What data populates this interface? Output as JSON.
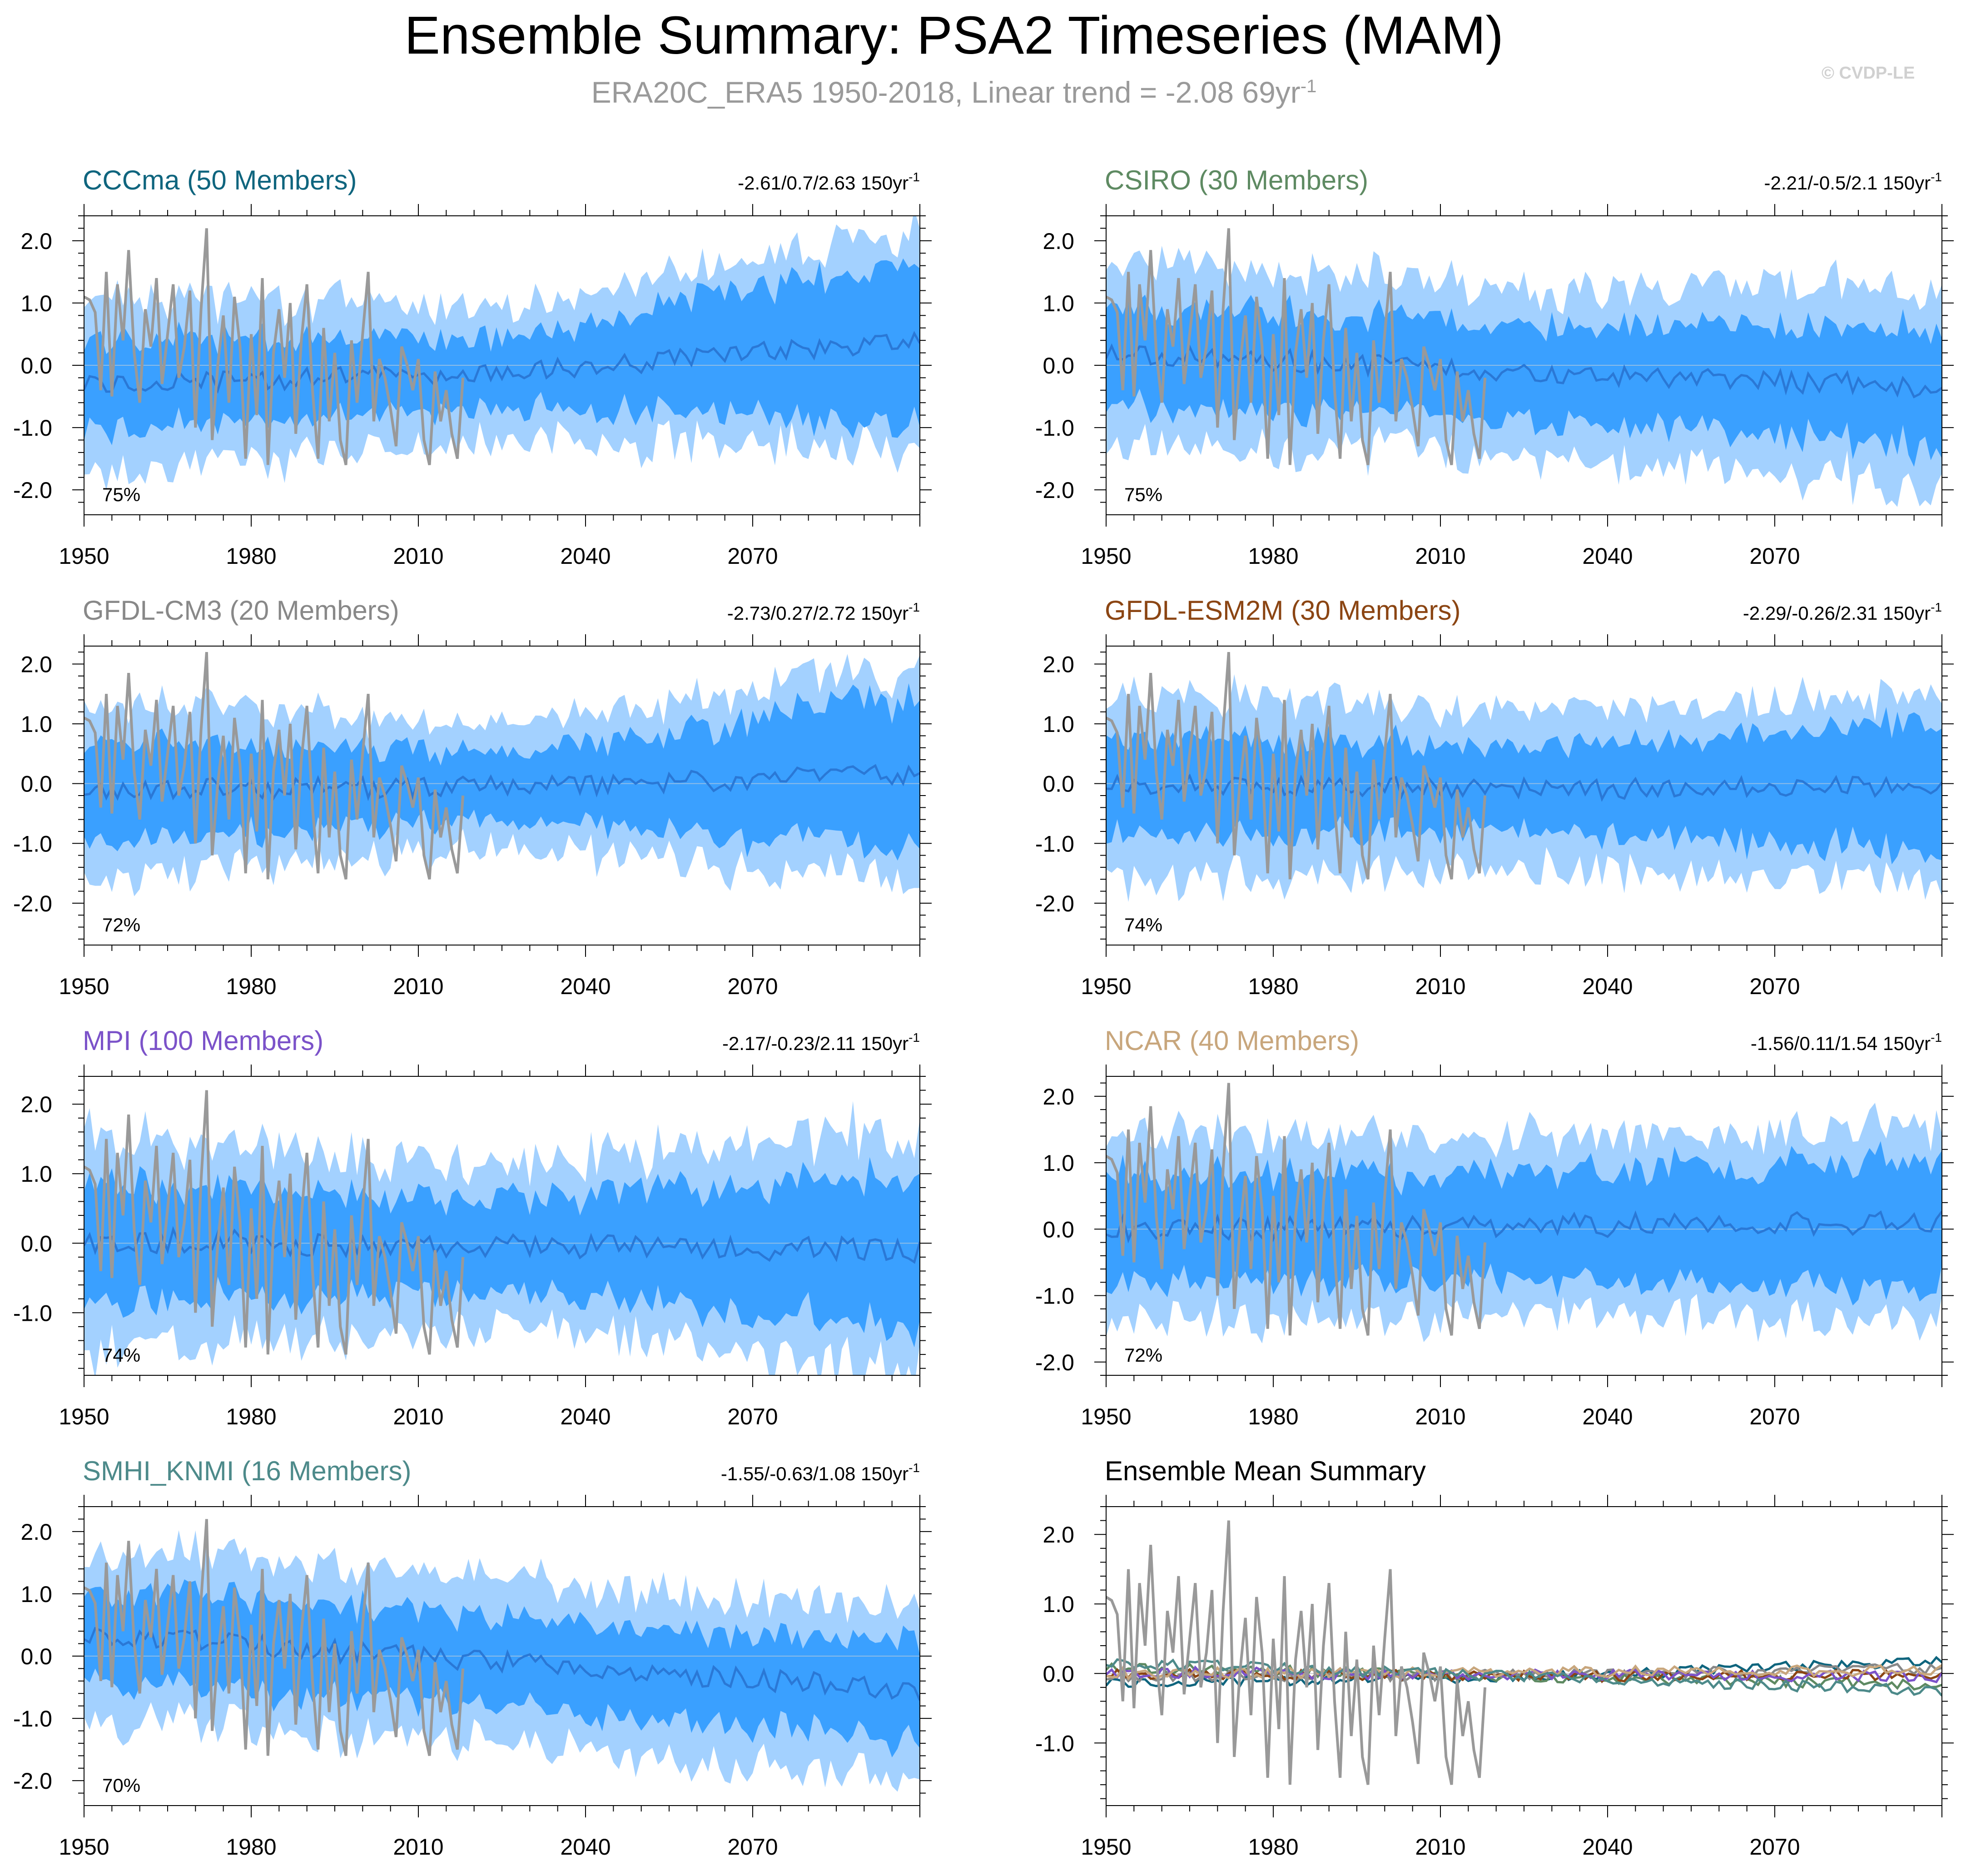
{
  "title": "Ensemble Summary: PSA2 Timeseries (MAM)",
  "subtitle": "ERA20C_ERA5 1950-2018, Linear trend = -2.08 69yr",
  "subtitle_exp": "-1",
  "credit": "© CVDP-LE",
  "colors": {
    "band_outer": "#a3d1ff",
    "band_inner": "#3aa0ff",
    "mean_line": "#2a78d6",
    "obs_line": "#999999",
    "zero_line": "#8fbde6"
  },
  "chart_data": [
    {
      "type": "line",
      "title": "CCCma (50 Members)",
      "title_color": "#0f657e",
      "trend_label": "-2.61/0.7/2.63 150yr",
      "trend_exp": "-1",
      "percent_label": "75%",
      "x_range": [
        1950,
        2100
      ],
      "ylim": [
        -2.4,
        2.4
      ],
      "yticks": [
        2.0,
        1.0,
        0.0,
        -1.0,
        -2.0
      ],
      "yticklabels": [
        "2.0",
        "1.0",
        "0.0",
        "-1.0",
        "-2.0"
      ],
      "xticks": [
        1950,
        1980,
        2010,
        2040,
        2070
      ],
      "xticklabels": [
        "1950",
        "1980",
        "2010",
        "2040",
        "2070"
      ],
      "envelope": {
        "outer_width": [
          1.45,
          1.05,
          1.75
        ],
        "inner_width": [
          0.75,
          0.55,
          1.3
        ]
      },
      "mean_trend": [
        -0.3,
        -0.15,
        0.4
      ],
      "seed": 11
    },
    {
      "type": "line",
      "title": "CSIRO (30 Members)",
      "title_color": "#5e8a62",
      "trend_label": "-2.21/-0.5/2.1 150yr",
      "trend_exp": "-1",
      "percent_label": "75%",
      "x_range": [
        1950,
        2100
      ],
      "ylim": [
        -2.4,
        2.4
      ],
      "yticks": [
        2.0,
        1.0,
        0.0,
        -1.0,
        -2.0
      ],
      "yticklabels": [
        "2.0",
        "1.0",
        "0.0",
        "-1.0",
        "-2.0"
      ],
      "xticks": [
        1950,
        1980,
        2010,
        2040,
        2070
      ],
      "xticklabels": [
        "1950",
        "1980",
        "2010",
        "2040",
        "2070"
      ],
      "envelope": {
        "outer_width": [
          1.5,
          1.35,
          1.6
        ],
        "inner_width": [
          0.8,
          0.75,
          0.95
        ]
      },
      "mean_trend": [
        0.2,
        -0.1,
        -0.35
      ],
      "seed": 23
    },
    {
      "type": "line",
      "title": "GFDL-CM3 (20 Members)",
      "title_color": "#888888",
      "trend_label": "-2.73/0.27/2.72 150yr",
      "trend_exp": "-1",
      "percent_label": "72%",
      "x_range": [
        1950,
        2100
      ],
      "ylim": [
        -2.7,
        2.3
      ],
      "yticks": [
        2.0,
        1.0,
        0.0,
        -1.0,
        -2.0
      ],
      "yticklabels": [
        "2.0",
        "1.0",
        "0.0",
        "-1.0",
        "-2.0"
      ],
      "xticks": [
        1950,
        1980,
        2010,
        2040,
        2070
      ],
      "xticklabels": [
        "1950",
        "1980",
        "2010",
        "2040",
        "2070"
      ],
      "envelope": {
        "outer_width": [
          1.5,
          1.0,
          1.8
        ],
        "inner_width": [
          0.85,
          0.55,
          1.3
        ]
      },
      "mean_trend": [
        -0.1,
        -0.05,
        0.15
      ],
      "seed": 37
    },
    {
      "type": "line",
      "title": "GFDL-ESM2M (30 Members)",
      "title_color": "#8b4513",
      "trend_label": "-2.29/-0.26/2.31 150yr",
      "trend_exp": "-1",
      "percent_label": "74%",
      "x_range": [
        1950,
        2100
      ],
      "ylim": [
        -2.7,
        2.3
      ],
      "yticks": [
        2.0,
        1.0,
        0.0,
        -1.0,
        -2.0
      ],
      "yticklabels": [
        "2.0",
        "1.0",
        "0.0",
        "-1.0",
        "-2.0"
      ],
      "xticks": [
        1950,
        1980,
        2010,
        2040,
        2070
      ],
      "xticklabels": [
        "1950",
        "1980",
        "2010",
        "2040",
        "2070"
      ],
      "envelope": {
        "outer_width": [
          1.6,
          1.3,
          1.6
        ],
        "inner_width": [
          0.85,
          0.7,
          1.1
        ]
      },
      "mean_trend": [
        0.0,
        -0.1,
        -0.05
      ],
      "seed": 53
    },
    {
      "type": "line",
      "title": "MPI (100 Members)",
      "title_color": "#7b52c9",
      "trend_label": "-2.17/-0.23/2.11 150yr",
      "trend_exp": "-1",
      "percent_label": "74%",
      "x_range": [
        1950,
        2100
      ],
      "ylim": [
        -1.9,
        2.4
      ],
      "yticks": [
        2.0,
        1.0,
        0.0,
        -1.0
      ],
      "yticklabels": [
        "2.0",
        "1.0",
        "0.0",
        "-1.0"
      ],
      "xticks": [
        1950,
        1980,
        2010,
        2040,
        2070
      ],
      "xticklabels": [
        "1950",
        "1980",
        "2010",
        "2040",
        "2070"
      ],
      "envelope": {
        "outer_width": [
          1.55,
          1.15,
          1.75
        ],
        "inner_width": [
          0.85,
          0.65,
          1.1
        ]
      },
      "mean_trend": [
        0.05,
        -0.05,
        -0.1
      ],
      "seed": 71
    },
    {
      "type": "line",
      "title": "NCAR (40 Members)",
      "title_color": "#c8a67c",
      "trend_label": "-1.56/0.11/1.54 150yr",
      "trend_exp": "-1",
      "percent_label": "72%",
      "x_range": [
        1950,
        2100
      ],
      "ylim": [
        -2.2,
        2.3
      ],
      "yticks": [
        2.0,
        1.0,
        0.0,
        -1.0,
        -2.0
      ],
      "yticklabels": [
        "2.0",
        "1.0",
        "0.0",
        "-1.0",
        "-2.0"
      ],
      "xticks": [
        1950,
        1980,
        2010,
        2040,
        2070
      ],
      "xticklabels": [
        "1950",
        "1980",
        "2010",
        "2040",
        "2070"
      ],
      "envelope": {
        "outer_width": [
          1.4,
          1.35,
          1.45
        ],
        "inner_width": [
          0.8,
          0.8,
          0.95
        ]
      },
      "mean_trend": [
        0.0,
        0.05,
        0.1
      ],
      "seed": 89
    },
    {
      "type": "line",
      "title": "SMHI_KNMI (16 Members)",
      "title_color": "#4d8a8a",
      "trend_label": "-1.55/-0.63/1.08 150yr",
      "trend_exp": "-1",
      "percent_label": "70%",
      "x_range": [
        1950,
        2100
      ],
      "ylim": [
        -2.4,
        2.4
      ],
      "yticks": [
        2.0,
        1.0,
        0.0,
        -1.0,
        -2.0
      ],
      "yticklabels": [
        "2.0",
        "1.0",
        "0.0",
        "-1.0",
        "-2.0"
      ],
      "xticks": [
        1950,
        1980,
        2010,
        2040,
        2070
      ],
      "xticklabels": [
        "1950",
        "1980",
        "2010",
        "2040",
        "2070"
      ],
      "envelope": {
        "outer_width": [
          1.4,
          1.3,
          1.35
        ],
        "inner_width": [
          0.75,
          0.7,
          0.8
        ]
      },
      "mean_trend": [
        0.35,
        -0.1,
        -0.55
      ],
      "seed": 97
    },
    {
      "type": "line",
      "title": "Ensemble Mean Summary",
      "title_color": "#000000",
      "trend_label": "",
      "trend_exp": "",
      "percent_label": "",
      "x_range": [
        1950,
        2100
      ],
      "ylim": [
        -1.9,
        2.4
      ],
      "yticks": [
        2.0,
        1.0,
        0.0,
        -1.0
      ],
      "yticklabels": [
        "2.0",
        "1.0",
        "0.0",
        "-1.0"
      ],
      "xticks": [
        1950,
        1980,
        2010,
        2040,
        2070
      ],
      "xticklabels": [
        "1950",
        "1980",
        "2010",
        "2040",
        "2070"
      ],
      "summary": true,
      "series_colors": [
        "#0f657e",
        "#5e8a62",
        "#888888",
        "#8b4513",
        "#7b52c9",
        "#c8a67c",
        "#4d8a8a"
      ]
    }
  ],
  "observations": {
    "name": "ERA20C_ERA5",
    "years": [
      1950,
      2018
    ],
    "values": [
      1.1,
      1.05,
      0.85,
      -0.4,
      1.5,
      -0.5,
      1.3,
      0.4,
      1.85,
      0.2,
      -0.6,
      0.9,
      0.3,
      1.4,
      -0.3,
      0.5,
      1.3,
      -0.2,
      0.3,
      1.2,
      -1.0,
      0.9,
      2.2,
      -1.2,
      0.0,
      0.8,
      -0.6,
      1.1,
      0.3,
      -1.5,
      0.5,
      -0.8,
      1.4,
      -1.6,
      0.2,
      0.9,
      -0.2,
      1.0,
      -1.1,
      0.4,
      1.3,
      -0.4,
      -1.5,
      0.6,
      -0.9,
      0.2,
      -1.2,
      -1.6,
      0.4,
      -0.6,
      0.5,
      1.5,
      -0.9,
      0.1,
      -0.2,
      -0.7,
      -1.3,
      0.3,
      0.0,
      -0.4,
      0.1,
      -1.2,
      -1.6,
      -0.1,
      -0.9,
      -0.4,
      -1.1,
      -1.5,
      -0.2
    ]
  }
}
